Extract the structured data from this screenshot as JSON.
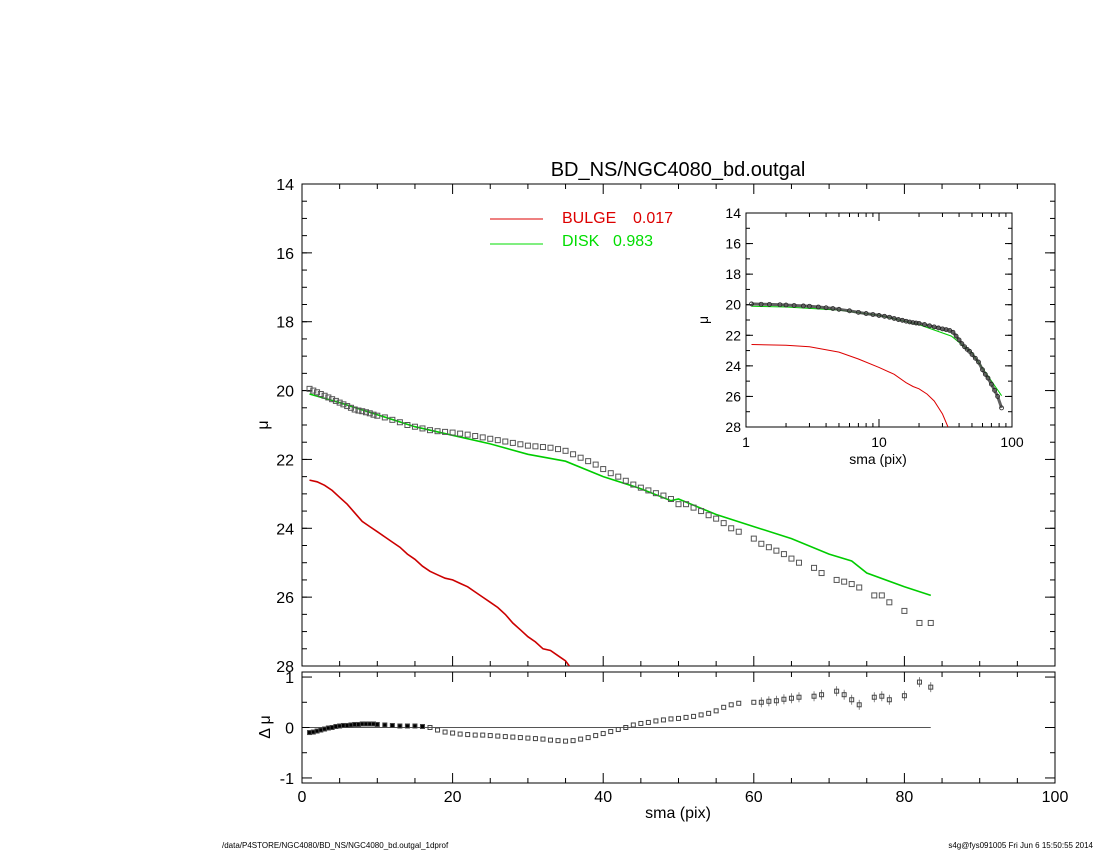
{
  "chart_data": [
    {
      "type": "scatter",
      "panel": "main",
      "title": "BD_NS/NGC4080_bd.outgal",
      "xlabel": "",
      "ylabel": "μ",
      "xlim": [
        0,
        100
      ],
      "ylim": [
        28,
        14
      ],
      "x_ticks": [],
      "y_ticks": [
        "14",
        "16",
        "18",
        "20",
        "22",
        "24",
        "26",
        "28"
      ],
      "y_tick_values": [
        14,
        16,
        18,
        20,
        22,
        24,
        26,
        28
      ],
      "legend": {
        "placement": "top",
        "entries": [
          {
            "label": "BULGE",
            "value": "0.017",
            "color": "#dd0000"
          },
          {
            "label": "DISK",
            "value": "0.983",
            "color": "#00dd00"
          }
        ]
      },
      "series": [
        {
          "name": "BULGE",
          "style": "line",
          "color": "#cc0000",
          "x": [
            1,
            2,
            3,
            4,
            5,
            6,
            7,
            8,
            9,
            10,
            11,
            12,
            13,
            14,
            15,
            16,
            17,
            18,
            19,
            20,
            21,
            22,
            23,
            24,
            25,
            26,
            27,
            28,
            29,
            30,
            31,
            32,
            33,
            34,
            35,
            35.5
          ],
          "y": [
            22.6,
            22.65,
            22.75,
            22.9,
            23.1,
            23.3,
            23.55,
            23.8,
            23.95,
            24.1,
            24.25,
            24.4,
            24.55,
            24.75,
            24.9,
            25.1,
            25.25,
            25.35,
            25.45,
            25.5,
            25.6,
            25.7,
            25.85,
            26.0,
            26.15,
            26.3,
            26.5,
            26.75,
            26.95,
            27.15,
            27.3,
            27.5,
            27.55,
            27.7,
            27.85,
            28.0
          ]
        },
        {
          "name": "DISK",
          "style": "line",
          "color": "#00cc00",
          "x": [
            1,
            5,
            10,
            15,
            20,
            25,
            30,
            35,
            40,
            45,
            49,
            50,
            55,
            60,
            65,
            70,
            73,
            75,
            80,
            83.5
          ],
          "y": [
            20.1,
            20.35,
            20.7,
            21.05,
            21.3,
            21.55,
            21.85,
            22.05,
            22.5,
            22.85,
            23.2,
            23.15,
            23.6,
            23.95,
            24.3,
            24.75,
            24.95,
            25.3,
            25.7,
            25.95
          ]
        },
        {
          "name": "",
          "style": "markers",
          "color": "#555555",
          "x": [
            1,
            1.5,
            2,
            2.5,
            3,
            3.5,
            4,
            4.5,
            5,
            5.5,
            6,
            6.5,
            7,
            7.5,
            8,
            8.5,
            9,
            9.5,
            10,
            11,
            12,
            13,
            14,
            15,
            16,
            17,
            18,
            19,
            20,
            21,
            22,
            23,
            24,
            25,
            26,
            27,
            28,
            29,
            30,
            31,
            32,
            33,
            34,
            35,
            36,
            37,
            38,
            39,
            40,
            41,
            42,
            43,
            44,
            45,
            46,
            47,
            48,
            49,
            50,
            51,
            52,
            53,
            54,
            55,
            56,
            57,
            58,
            60,
            61,
            62,
            63,
            64,
            65,
            66,
            68,
            69,
            71,
            72,
            73,
            74,
            76,
            77,
            78,
            80,
            82,
            83.5
          ],
          "y": [
            19.95,
            20.0,
            20.05,
            20.1,
            20.15,
            20.2,
            20.25,
            20.3,
            20.35,
            20.4,
            20.45,
            20.5,
            20.55,
            20.58,
            20.6,
            20.63,
            20.66,
            20.7,
            20.73,
            20.78,
            20.85,
            20.92,
            21.0,
            21.05,
            21.1,
            21.15,
            21.18,
            21.2,
            21.22,
            21.25,
            21.28,
            21.32,
            21.36,
            21.4,
            21.44,
            21.48,
            21.52,
            21.56,
            21.6,
            21.62,
            21.64,
            21.66,
            21.7,
            21.75,
            21.85,
            21.95,
            22.05,
            22.15,
            22.28,
            22.4,
            22.5,
            22.62,
            22.73,
            22.82,
            22.9,
            22.98,
            23.05,
            23.15,
            23.3,
            23.3,
            23.4,
            23.5,
            23.62,
            23.72,
            23.85,
            24.0,
            24.1,
            24.3,
            24.45,
            24.55,
            24.65,
            24.75,
            24.88,
            25.0,
            25.15,
            25.3,
            25.5,
            25.55,
            25.62,
            25.72,
            25.95,
            25.95,
            26.15,
            26.4,
            26.75,
            26.75
          ]
        }
      ]
    },
    {
      "type": "scatter",
      "panel": "inset",
      "xlabel": "sma (pix)",
      "ylabel": "μ",
      "xscale": "log",
      "xlim": [
        1,
        100
      ],
      "ylim": [
        28,
        14
      ],
      "x_ticks": [
        "1",
        "10",
        "100"
      ],
      "x_tick_values": [
        1,
        10,
        100
      ],
      "y_ticks": [
        "14",
        "16",
        "18",
        "20",
        "22",
        "24",
        "26",
        "28"
      ],
      "y_tick_values": [
        14,
        16,
        18,
        20,
        22,
        24,
        26,
        28
      ],
      "series": [
        {
          "name": "BULGE",
          "style": "line",
          "color": "#dd0000",
          "x": [
            1.1,
            2,
            3,
            5,
            7,
            10,
            13,
            16,
            18,
            20,
            23,
            26,
            30,
            33
          ],
          "y": [
            22.6,
            22.65,
            22.75,
            23.1,
            23.55,
            24.1,
            24.55,
            25.1,
            25.35,
            25.5,
            25.85,
            26.3,
            27.15,
            28.0
          ]
        },
        {
          "name": "DISK",
          "style": "line",
          "color": "#00cc00",
          "x": [
            1.1,
            2,
            5,
            10,
            20,
            35,
            50,
            83.5
          ],
          "y": [
            20.1,
            20.15,
            20.35,
            20.7,
            21.3,
            22.05,
            23.15,
            25.95
          ]
        },
        {
          "name": "",
          "style": "markers",
          "color": "#444444",
          "x": [
            1.1,
            1.3,
            1.5,
            1.8,
            2,
            2.3,
            2.7,
            3,
            3.5,
            4,
            4.5,
            5,
            6,
            7,
            8,
            9,
            10,
            11,
            12,
            13,
            14,
            15,
            16,
            17,
            18,
            19,
            20,
            22,
            24,
            26,
            28,
            30,
            32,
            34,
            36,
            38,
            40,
            42,
            44,
            46,
            48,
            50,
            53,
            56,
            60,
            63,
            66,
            70,
            74,
            78,
            83.5
          ],
          "y": [
            19.95,
            19.97,
            19.98,
            20.0,
            20.02,
            20.05,
            20.08,
            20.1,
            20.15,
            20.2,
            20.25,
            20.3,
            20.4,
            20.5,
            20.58,
            20.64,
            20.7,
            20.76,
            20.82,
            20.9,
            20.97,
            21.02,
            21.08,
            21.13,
            21.17,
            21.2,
            21.22,
            21.3,
            21.38,
            21.45,
            21.52,
            21.58,
            21.63,
            21.68,
            21.8,
            22.05,
            22.3,
            22.55,
            22.75,
            22.92,
            23.05,
            23.25,
            23.5,
            23.75,
            24.25,
            24.55,
            24.8,
            25.2,
            25.6,
            26.0,
            26.75
          ]
        }
      ]
    },
    {
      "type": "scatter",
      "panel": "residual",
      "xlabel": "sma (pix)",
      "ylabel": "Δ μ",
      "xlim": [
        0,
        100
      ],
      "ylim": [
        -1.1,
        1.1
      ],
      "x_ticks": [
        "0",
        "20",
        "40",
        "60",
        "80",
        "100"
      ],
      "x_tick_values": [
        0,
        20,
        40,
        60,
        80,
        100
      ],
      "y_ticks": [
        "1",
        "0",
        "-1"
      ],
      "y_tick_values": [
        1,
        0,
        -1
      ],
      "zero_line": {
        "x_start": 1,
        "x_end": 83.5,
        "color": "#555555"
      },
      "series": [
        {
          "name": "",
          "style": "markers",
          "color": "#444444",
          "x": [
            1,
            1.5,
            2,
            2.5,
            3,
            3.5,
            4,
            4.5,
            5,
            5.5,
            6,
            6.5,
            7,
            7.5,
            8,
            8.5,
            9,
            9.5,
            10,
            11,
            12,
            13,
            14,
            15,
            16,
            17,
            18,
            19,
            20,
            21,
            22,
            23,
            24,
            25,
            26,
            27,
            28,
            29,
            30,
            31,
            32,
            33,
            34,
            35,
            36,
            37,
            38,
            39,
            40,
            41,
            42,
            43,
            44,
            45,
            46,
            47,
            48,
            49,
            50,
            51,
            52,
            53,
            54,
            55,
            56,
            57,
            58,
            60,
            61,
            62,
            63,
            64,
            65,
            66,
            68,
            69,
            71,
            72,
            73,
            74,
            76,
            77,
            78,
            80,
            82,
            83.5
          ],
          "y": [
            -0.1,
            -0.09,
            -0.07,
            -0.05,
            -0.03,
            -0.01,
            0.0,
            0.02,
            0.03,
            0.04,
            0.04,
            0.05,
            0.06,
            0.06,
            0.07,
            0.07,
            0.07,
            0.07,
            0.06,
            0.05,
            0.04,
            0.03,
            0.03,
            0.03,
            0.02,
            0.0,
            -0.05,
            -0.09,
            -0.11,
            -0.13,
            -0.14,
            -0.15,
            -0.15,
            -0.16,
            -0.17,
            -0.18,
            -0.19,
            -0.2,
            -0.21,
            -0.22,
            -0.23,
            -0.25,
            -0.26,
            -0.27,
            -0.26,
            -0.23,
            -0.2,
            -0.16,
            -0.12,
            -0.08,
            -0.04,
            0.0,
            0.05,
            0.08,
            0.1,
            0.13,
            0.15,
            0.17,
            0.18,
            0.2,
            0.22,
            0.25,
            0.28,
            0.33,
            0.4,
            0.45,
            0.48,
            0.5,
            0.5,
            0.52,
            0.53,
            0.56,
            0.58,
            0.6,
            0.62,
            0.65,
            0.72,
            0.65,
            0.55,
            0.45,
            0.6,
            0.62,
            0.55,
            0.63,
            0.9,
            0.8
          ]
        }
      ]
    }
  ],
  "footer": {
    "left": "/data/P4STORE/NGC4080/BD_NS/NGC4080_bd.outgal_1dprof",
    "right": "s4g@fys091005  Fri Jun  6 15:50:55 2014"
  }
}
